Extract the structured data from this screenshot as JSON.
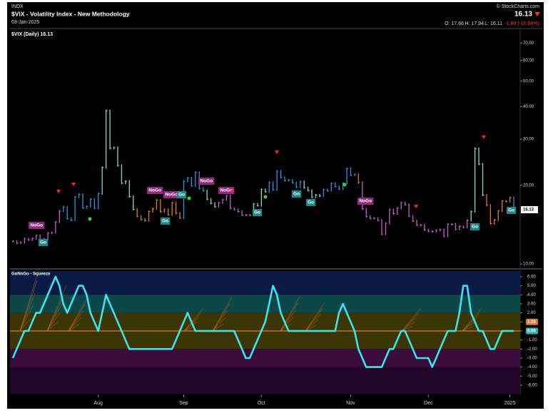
{
  "header": {
    "exchange": "INDX",
    "title": "$VIX - Volatility Index - New Methodology",
    "date": "03-Jan-2025",
    "source": "© StockCharts.com",
    "last": "16.13",
    "open": "O: 17.66",
    "high": "H: 17.94",
    "low": "L: 16.11",
    "change": "-1.80 (-10.04%)"
  },
  "chart_data": [
    {
      "type": "bar",
      "title": "$VIX (Daily) 16.13",
      "values": [
        12.22,
        12.03,
        12.09,
        12.48,
        12.37,
        12.51,
        12.85,
        12.46,
        12.46,
        13.12,
        13.19,
        14.48,
        15.93,
        16.52,
        14.91,
        14.72,
        18.04,
        18.46,
        16.39,
        16.6,
        17.69,
        16.36,
        18.59,
        23.39,
        38.57,
        27.71,
        27.85,
        23.79,
        20.37,
        20.71,
        18.12,
        16.19,
        15.23,
        14.8,
        14.65,
        15.88,
        16.27,
        17.55,
        15.86,
        16.15,
        15.43,
        17.11,
        15.65,
        15.0,
        20.72,
        21.32,
        19.9,
        22.38,
        19.45,
        19.08,
        17.69,
        17.07,
        16.56,
        17.14,
        17.61,
        18.23,
        16.33,
        16.15,
        15.89,
        15.39,
        15.37,
        15.37,
        16.96,
        16.73,
        19.26,
        18.9,
        20.49,
        19.21,
        22.64,
        21.42,
        20.86,
        20.93,
        20.46,
        19.7,
        20.64,
        19.58,
        19.11,
        18.03,
        18.37,
        18.2,
        19.24,
        19.08,
        20.33,
        19.8,
        19.34,
        20.35,
        23.16,
        21.88,
        21.98,
        20.49,
        16.27,
        15.2,
        14.94,
        14.97,
        14.71,
        13.02,
        14.31,
        16.14,
        15.58,
        16.35,
        17.16,
        16.87,
        15.24,
        14.6,
        14.1,
        14.1,
        13.51,
        13.34,
        13.3,
        13.45,
        13.54,
        12.77,
        14.19,
        14.18,
        13.58,
        13.92,
        13.81,
        14.69,
        15.87,
        27.62,
        24.09,
        18.36,
        16.78,
        14.27,
        14.73,
        15.95,
        17.4,
        17.35,
        17.93,
        16.13
      ],
      "regimes": [
        "p",
        "p",
        "p",
        "p",
        "p",
        "p",
        "p",
        "p",
        "p",
        "p",
        "p",
        "p",
        "p",
        "b",
        "b",
        "b",
        "b",
        "b",
        "b",
        "b",
        "b",
        "b",
        "b",
        "t",
        "t",
        "t",
        "t",
        "t",
        "t",
        "t",
        "t",
        "t",
        "a",
        "a",
        "a",
        "a",
        "a",
        "a",
        "a",
        "a",
        "a",
        "a",
        "a",
        "a",
        "b",
        "b",
        "b",
        "b",
        "b",
        "b",
        "t",
        "t",
        "t",
        "p",
        "p",
        "p",
        "p",
        "p",
        "p",
        "p",
        "p",
        "p",
        "t",
        "t",
        "t",
        "t",
        "b",
        "b",
        "b",
        "b",
        "b",
        "b",
        "b",
        "b",
        "b",
        "t",
        "t",
        "t",
        "t",
        "t",
        "b",
        "b",
        "b",
        "b",
        "b",
        "b",
        "b",
        "b",
        "b",
        "a",
        "p",
        "p",
        "p",
        "p",
        "p",
        "p",
        "p",
        "p",
        "p",
        "p",
        "p",
        "p",
        "p",
        "p",
        "p",
        "p",
        "p",
        "p",
        "p",
        "p",
        "p",
        "p",
        "p",
        "p",
        "p",
        "p",
        "p",
        "p",
        "t",
        "t",
        "t",
        "t",
        "a",
        "a",
        "a",
        "a",
        "a",
        "a",
        "a",
        "b"
      ],
      "regime_colors": {
        "p": "#c45fc9",
        "b": "#2a95e0",
        "t": "#86d9c4",
        "a": "#e07a2a"
      },
      "ylim": [
        9.7,
        77
      ],
      "log_scale": true,
      "yticks": [
        {
          "value": 10,
          "label": "10.00"
        },
        {
          "value": 20,
          "label": "20.00"
        },
        {
          "value": 30,
          "label": "30.00"
        },
        {
          "value": 40,
          "label": "40.00"
        },
        {
          "value": 50,
          "label": "50.00"
        },
        {
          "value": 60,
          "label": "60.00"
        },
        {
          "value": 70,
          "label": "70.00"
        }
      ],
      "annotations": [
        {
          "text": "NoGo",
          "color": "#93287f"
        },
        {
          "text": "Go",
          "color": "#1d8a8a"
        },
        {
          "text": "NoGo",
          "color": "#93287f"
        },
        {
          "text": "NoGo",
          "color": "#93287f"
        },
        {
          "text": "Go",
          "color": "#1d8a8a"
        },
        {
          "text": "NoGo",
          "color": "#93287f"
        },
        {
          "text": "NoGo",
          "color": "#93287f"
        },
        {
          "text": "Go",
          "color": "#1d8a8a"
        },
        {
          "text": "Go",
          "color": "#1d8a8a"
        },
        {
          "text": "Go",
          "color": "#1d8a8a"
        },
        {
          "text": "Go",
          "color": "#1d8a8a"
        },
        {
          "text": "NoGo",
          "color": "#93287f"
        },
        {
          "text": "Go",
          "color": "#1d8a8a"
        },
        {
          "text": "Go",
          "color": "#1d8a8a"
        }
      ]
    },
    {
      "type": "line",
      "title": "GoNoGo - Squeeze",
      "color": "#3fe3ea",
      "values": [
        -3,
        -2,
        -1,
        0,
        0,
        1,
        2,
        2,
        3,
        4,
        5,
        6,
        5,
        3,
        2,
        3,
        4,
        5,
        5,
        4,
        2,
        1,
        0,
        2,
        4,
        3,
        2,
        1,
        0,
        -1,
        -2,
        -2,
        -2,
        -2,
        -2,
        -2,
        -2,
        -2,
        -2,
        -2,
        -2,
        -2,
        -1,
        0,
        1,
        2,
        1,
        0,
        0,
        0,
        0,
        0,
        0,
        0,
        0,
        0,
        0,
        0,
        -1,
        -2,
        -3,
        -3,
        -2,
        -1,
        0,
        1,
        3,
        5,
        4,
        2,
        1,
        0,
        0,
        0,
        0,
        0,
        0,
        0,
        0,
        0,
        0,
        0,
        0,
        0,
        2,
        3,
        2,
        1,
        0,
        -2,
        -3,
        -4,
        -4,
        -4,
        -4,
        -4,
        -3,
        -2,
        -2,
        -1,
        0,
        0,
        -1,
        -2,
        -3,
        -3,
        -3,
        -3,
        -4,
        -3,
        -2,
        -1,
        0,
        0,
        0,
        2,
        5,
        5,
        2,
        1,
        0,
        0,
        -1,
        -2,
        -2,
        -1,
        0,
        0,
        0,
        0
      ],
      "ylim": [
        -6.95,
        6.63
      ],
      "yticks": [
        {
          "value": 6,
          "label": "6.00"
        },
        {
          "value": 5,
          "label": "5.00"
        },
        {
          "value": 4,
          "label": "4.00"
        },
        {
          "value": 3,
          "label": "3.00"
        },
        {
          "value": 2,
          "label": "2.00"
        },
        {
          "value": 1,
          "label": "1.00",
          "box": "#e07a2a"
        },
        {
          "value": 0,
          "label": "0.00",
          "box": "#2ab3b3"
        },
        {
          "value": -1,
          "label": "-1.00"
        },
        {
          "value": -2,
          "label": "-2.00"
        },
        {
          "value": -3,
          "label": "-3.00"
        },
        {
          "value": -4,
          "label": "-4.00"
        },
        {
          "value": -5,
          "label": "-5.00"
        },
        {
          "value": -6,
          "label": "-6.00"
        }
      ],
      "bands": [
        {
          "from": 4,
          "to": 6.63,
          "color": "#0b1b45"
        },
        {
          "from": 2,
          "to": 4,
          "color": "#0d4848"
        },
        {
          "from": -2,
          "to": 2,
          "color": "#3b3604"
        },
        {
          "from": -4,
          "to": -2,
          "color": "#3a0c3c"
        },
        {
          "from": -6.95,
          "to": -4,
          "color": "#22062a"
        }
      ],
      "zero_line_color": "#e07a2a",
      "xticks": [
        {
          "value": 22,
          "label": "Aug"
        },
        {
          "value": 44,
          "label": "Sep"
        },
        {
          "value": 64,
          "label": "Oct"
        },
        {
          "value": 87,
          "label": "Nov"
        },
        {
          "value": 107,
          "label": "Dec"
        },
        {
          "value": 128,
          "label": "2025"
        }
      ]
    }
  ]
}
